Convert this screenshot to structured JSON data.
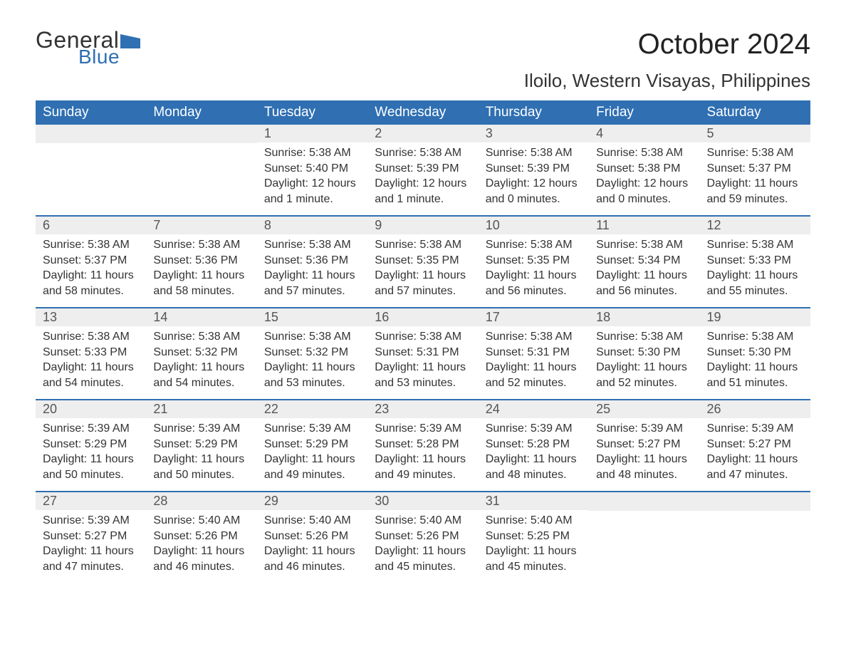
{
  "brand": {
    "text1": "General",
    "text2": "Blue",
    "color_text": "#333333",
    "color_blue": "#2f6fb2"
  },
  "title": "October 2024",
  "location": "Iloilo, Western Visayas, Philippines",
  "title_fontsize": 40,
  "location_fontsize": 26,
  "header_bg": "#2f6fb2",
  "header_text_color": "#ffffff",
  "daynum_bg": "#eeeeee",
  "body_fontsize": 16,
  "columns": [
    "Sunday",
    "Monday",
    "Tuesday",
    "Wednesday",
    "Thursday",
    "Friday",
    "Saturday"
  ],
  "weeks": [
    [
      null,
      null,
      {
        "n": "1",
        "sunrise": "Sunrise: 5:38 AM",
        "sunset": "Sunset: 5:40 PM",
        "dl1": "Daylight: 12 hours",
        "dl2": "and 1 minute."
      },
      {
        "n": "2",
        "sunrise": "Sunrise: 5:38 AM",
        "sunset": "Sunset: 5:39 PM",
        "dl1": "Daylight: 12 hours",
        "dl2": "and 1 minute."
      },
      {
        "n": "3",
        "sunrise": "Sunrise: 5:38 AM",
        "sunset": "Sunset: 5:39 PM",
        "dl1": "Daylight: 12 hours",
        "dl2": "and 0 minutes."
      },
      {
        "n": "4",
        "sunrise": "Sunrise: 5:38 AM",
        "sunset": "Sunset: 5:38 PM",
        "dl1": "Daylight: 12 hours",
        "dl2": "and 0 minutes."
      },
      {
        "n": "5",
        "sunrise": "Sunrise: 5:38 AM",
        "sunset": "Sunset: 5:37 PM",
        "dl1": "Daylight: 11 hours",
        "dl2": "and 59 minutes."
      }
    ],
    [
      {
        "n": "6",
        "sunrise": "Sunrise: 5:38 AM",
        "sunset": "Sunset: 5:37 PM",
        "dl1": "Daylight: 11 hours",
        "dl2": "and 58 minutes."
      },
      {
        "n": "7",
        "sunrise": "Sunrise: 5:38 AM",
        "sunset": "Sunset: 5:36 PM",
        "dl1": "Daylight: 11 hours",
        "dl2": "and 58 minutes."
      },
      {
        "n": "8",
        "sunrise": "Sunrise: 5:38 AM",
        "sunset": "Sunset: 5:36 PM",
        "dl1": "Daylight: 11 hours",
        "dl2": "and 57 minutes."
      },
      {
        "n": "9",
        "sunrise": "Sunrise: 5:38 AM",
        "sunset": "Sunset: 5:35 PM",
        "dl1": "Daylight: 11 hours",
        "dl2": "and 57 minutes."
      },
      {
        "n": "10",
        "sunrise": "Sunrise: 5:38 AM",
        "sunset": "Sunset: 5:35 PM",
        "dl1": "Daylight: 11 hours",
        "dl2": "and 56 minutes."
      },
      {
        "n": "11",
        "sunrise": "Sunrise: 5:38 AM",
        "sunset": "Sunset: 5:34 PM",
        "dl1": "Daylight: 11 hours",
        "dl2": "and 56 minutes."
      },
      {
        "n": "12",
        "sunrise": "Sunrise: 5:38 AM",
        "sunset": "Sunset: 5:33 PM",
        "dl1": "Daylight: 11 hours",
        "dl2": "and 55 minutes."
      }
    ],
    [
      {
        "n": "13",
        "sunrise": "Sunrise: 5:38 AM",
        "sunset": "Sunset: 5:33 PM",
        "dl1": "Daylight: 11 hours",
        "dl2": "and 54 minutes."
      },
      {
        "n": "14",
        "sunrise": "Sunrise: 5:38 AM",
        "sunset": "Sunset: 5:32 PM",
        "dl1": "Daylight: 11 hours",
        "dl2": "and 54 minutes."
      },
      {
        "n": "15",
        "sunrise": "Sunrise: 5:38 AM",
        "sunset": "Sunset: 5:32 PM",
        "dl1": "Daylight: 11 hours",
        "dl2": "and 53 minutes."
      },
      {
        "n": "16",
        "sunrise": "Sunrise: 5:38 AM",
        "sunset": "Sunset: 5:31 PM",
        "dl1": "Daylight: 11 hours",
        "dl2": "and 53 minutes."
      },
      {
        "n": "17",
        "sunrise": "Sunrise: 5:38 AM",
        "sunset": "Sunset: 5:31 PM",
        "dl1": "Daylight: 11 hours",
        "dl2": "and 52 minutes."
      },
      {
        "n": "18",
        "sunrise": "Sunrise: 5:38 AM",
        "sunset": "Sunset: 5:30 PM",
        "dl1": "Daylight: 11 hours",
        "dl2": "and 52 minutes."
      },
      {
        "n": "19",
        "sunrise": "Sunrise: 5:38 AM",
        "sunset": "Sunset: 5:30 PM",
        "dl1": "Daylight: 11 hours",
        "dl2": "and 51 minutes."
      }
    ],
    [
      {
        "n": "20",
        "sunrise": "Sunrise: 5:39 AM",
        "sunset": "Sunset: 5:29 PM",
        "dl1": "Daylight: 11 hours",
        "dl2": "and 50 minutes."
      },
      {
        "n": "21",
        "sunrise": "Sunrise: 5:39 AM",
        "sunset": "Sunset: 5:29 PM",
        "dl1": "Daylight: 11 hours",
        "dl2": "and 50 minutes."
      },
      {
        "n": "22",
        "sunrise": "Sunrise: 5:39 AM",
        "sunset": "Sunset: 5:29 PM",
        "dl1": "Daylight: 11 hours",
        "dl2": "and 49 minutes."
      },
      {
        "n": "23",
        "sunrise": "Sunrise: 5:39 AM",
        "sunset": "Sunset: 5:28 PM",
        "dl1": "Daylight: 11 hours",
        "dl2": "and 49 minutes."
      },
      {
        "n": "24",
        "sunrise": "Sunrise: 5:39 AM",
        "sunset": "Sunset: 5:28 PM",
        "dl1": "Daylight: 11 hours",
        "dl2": "and 48 minutes."
      },
      {
        "n": "25",
        "sunrise": "Sunrise: 5:39 AM",
        "sunset": "Sunset: 5:27 PM",
        "dl1": "Daylight: 11 hours",
        "dl2": "and 48 minutes."
      },
      {
        "n": "26",
        "sunrise": "Sunrise: 5:39 AM",
        "sunset": "Sunset: 5:27 PM",
        "dl1": "Daylight: 11 hours",
        "dl2": "and 47 minutes."
      }
    ],
    [
      {
        "n": "27",
        "sunrise": "Sunrise: 5:39 AM",
        "sunset": "Sunset: 5:27 PM",
        "dl1": "Daylight: 11 hours",
        "dl2": "and 47 minutes."
      },
      {
        "n": "28",
        "sunrise": "Sunrise: 5:40 AM",
        "sunset": "Sunset: 5:26 PM",
        "dl1": "Daylight: 11 hours",
        "dl2": "and 46 minutes."
      },
      {
        "n": "29",
        "sunrise": "Sunrise: 5:40 AM",
        "sunset": "Sunset: 5:26 PM",
        "dl1": "Daylight: 11 hours",
        "dl2": "and 46 minutes."
      },
      {
        "n": "30",
        "sunrise": "Sunrise: 5:40 AM",
        "sunset": "Sunset: 5:26 PM",
        "dl1": "Daylight: 11 hours",
        "dl2": "and 45 minutes."
      },
      {
        "n": "31",
        "sunrise": "Sunrise: 5:40 AM",
        "sunset": "Sunset: 5:25 PM",
        "dl1": "Daylight: 11 hours",
        "dl2": "and 45 minutes."
      },
      null,
      null
    ]
  ]
}
